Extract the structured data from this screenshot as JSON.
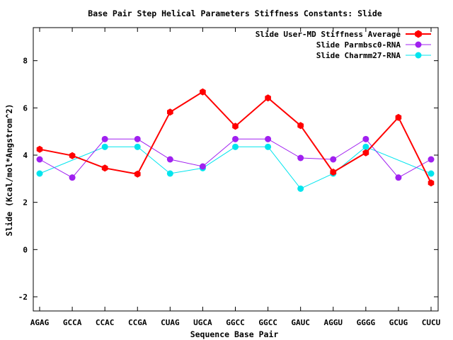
{
  "chart_data": {
    "type": "line",
    "title": "Base Pair Step Helical Parameters Stiffness Constants: Slide",
    "xlabel": "Sequence Base Pair",
    "ylabel": "Slide (Kcal/mol*Angstrom^2)",
    "categories": [
      "AGAG",
      "GCCA",
      "CCAC",
      "CCGA",
      "CUAG",
      "UGCA",
      "GGCC",
      "GGCC",
      "GAUC",
      "AGGU",
      "GGGG",
      "GCUG",
      "CUCU"
    ],
    "ylim": [
      -2.6,
      9.4
    ],
    "yticks": [
      -2,
      0,
      2,
      4,
      6,
      8
    ],
    "grid": false,
    "legend_position": "top-right",
    "series": [
      {
        "name": "Slide User-MD Stiffness Average",
        "color": "#ff0000",
        "marker": "hexagon",
        "values": [
          4.25,
          3.98,
          3.45,
          3.2,
          5.82,
          6.68,
          5.22,
          6.42,
          5.25,
          3.28,
          4.1,
          5.6,
          2.82
        ]
      },
      {
        "name": "Slide Parmbsc0-RNA",
        "color": "#a020f0",
        "marker": "circle",
        "values": [
          3.82,
          3.05,
          4.68,
          4.68,
          3.82,
          3.52,
          4.68,
          4.68,
          3.88,
          3.82,
          4.68,
          3.05,
          3.82
        ]
      },
      {
        "name": "Slide Charmm27-RNA",
        "color": "#00e5ee",
        "marker": "circle",
        "values": [
          3.22,
          null,
          4.35,
          4.35,
          3.22,
          3.45,
          4.35,
          4.35,
          2.58,
          3.22,
          4.35,
          null,
          3.22
        ]
      }
    ]
  }
}
